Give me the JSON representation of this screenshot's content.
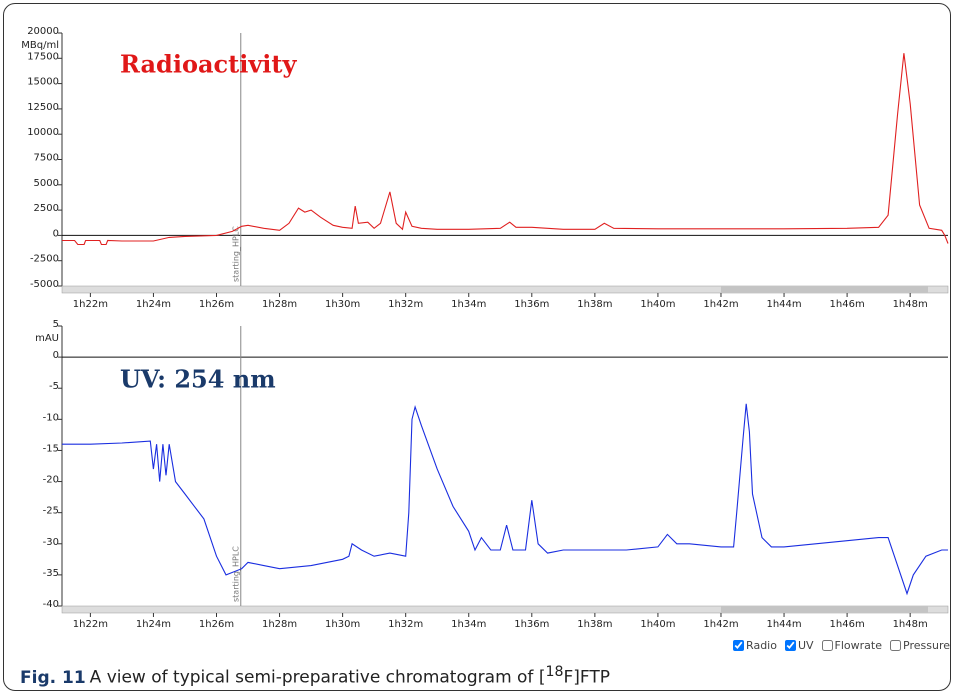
{
  "chart_data": [
    {
      "type": "line",
      "title": "Radioactivity",
      "y_unit": "MBq/ml",
      "color": "#e02020",
      "x": [
        81.1,
        81.5,
        81.6,
        81.8,
        81.85,
        82.3,
        82.35,
        82.5,
        82.55,
        83,
        84,
        84.5,
        85,
        86,
        86.5,
        86.8,
        87,
        87.5,
        88,
        88.3,
        88.6,
        88.8,
        89,
        89.3,
        89.7,
        90,
        90.3,
        90.4,
        90.5,
        90.8,
        91,
        91.2,
        91.5,
        91.7,
        91.9,
        92,
        92.2,
        92.5,
        93,
        94,
        95,
        95.3,
        95.5,
        96,
        97,
        98,
        98.3,
        98.6,
        100,
        104,
        106,
        107,
        107.3,
        107.6,
        107.8,
        108,
        108.3,
        108.6,
        109,
        109.1,
        109.2
      ],
      "values": [
        -500,
        -500,
        -900,
        -900,
        -500,
        -500,
        -900,
        -900,
        -500,
        -550,
        -550,
        -200,
        -100,
        0,
        400,
        900,
        1000,
        700,
        500,
        1200,
        2700,
        2300,
        2500,
        1800,
        1000,
        800,
        700,
        2900,
        1200,
        1300,
        700,
        1200,
        4300,
        1200,
        600,
        2300,
        900,
        700,
        600,
        600,
        700,
        1300,
        800,
        800,
        600,
        600,
        1200,
        700,
        650,
        650,
        700,
        800,
        2000,
        12000,
        18000,
        13000,
        3000,
        700,
        500,
        0,
        -800
      ],
      "xlim": [
        81.1,
        109.2
      ],
      "ylim": [
        -5000,
        20000
      ],
      "yticks": [
        -5000,
        -2500,
        0,
        2500,
        5000,
        7500,
        10000,
        12500,
        15000,
        17500,
        20000
      ],
      "xticks": [
        {
          "value": 82,
          "label": "1h22m"
        },
        {
          "value": 84,
          "label": "1h24m"
        },
        {
          "value": 86,
          "label": "1h26m"
        },
        {
          "value": 88,
          "label": "1h28m"
        },
        {
          "value": 90,
          "label": "1h30m"
        },
        {
          "value": 92,
          "label": "1h32m"
        },
        {
          "value": 94,
          "label": "1h34m"
        },
        {
          "value": 96,
          "label": "1h36m"
        },
        {
          "value": 98,
          "label": "1h38m"
        },
        {
          "value": 100,
          "label": "1h40m"
        },
        {
          "value": 102,
          "label": "1h42m"
        },
        {
          "value": 104,
          "label": "1h44m"
        },
        {
          "value": 106,
          "label": "1h46m"
        },
        {
          "value": 108,
          "label": "1h48m"
        }
      ],
      "marker": {
        "text": "starting_HPLC",
        "x": 86.77
      }
    },
    {
      "type": "line",
      "title": "UV: 254 nm",
      "y_unit": "mAU",
      "color": "#1a2ee0",
      "x": [
        81.1,
        82,
        83,
        83.9,
        84,
        84.1,
        84.2,
        84.3,
        84.4,
        84.5,
        84.7,
        85,
        85.3,
        85.6,
        86,
        86.3,
        86.8,
        87,
        87.5,
        88,
        89,
        90,
        90.2,
        90.3,
        90.6,
        91,
        91.5,
        92,
        92.1,
        92.2,
        92.3,
        92.5,
        93,
        93.5,
        94,
        94.2,
        94.4,
        94.7,
        95,
        95.2,
        95.4,
        95.8,
        96,
        96.2,
        96.5,
        97,
        98,
        99,
        100,
        100.3,
        100.6,
        101,
        102,
        102.4,
        102.5,
        102.7,
        102.8,
        102.9,
        103,
        103.3,
        103.6,
        104,
        105,
        106,
        107,
        107.3,
        107.5,
        107.9,
        108.1,
        108.5,
        109,
        109.2
      ],
      "values": [
        -14,
        -14,
        -13.8,
        -13.5,
        -18,
        -14,
        -20,
        -14,
        -19,
        -14,
        -20,
        -22,
        -24,
        -26,
        -32,
        -35,
        -34,
        -33,
        -33.5,
        -34,
        -33.5,
        -32.5,
        -32,
        -30,
        -31,
        -32,
        -31.5,
        -32,
        -25,
        -10,
        -8,
        -11,
        -18,
        -24,
        -28,
        -31,
        -29,
        -31,
        -31,
        -27,
        -31,
        -31,
        -23,
        -30,
        -31.5,
        -31,
        -31,
        -31,
        -30.5,
        -28.5,
        -30,
        -30,
        -30.5,
        -30.5,
        -25,
        -13,
        -7.5,
        -12,
        -22,
        -29,
        -30.5,
        -30.5,
        -30,
        -29.5,
        -29,
        -29,
        -32,
        -38,
        -35,
        -32,
        -31,
        -31
      ],
      "xlim": [
        81.1,
        109.2
      ],
      "ylim": [
        -40,
        5
      ],
      "yticks": [
        -40,
        -35,
        -30,
        -25,
        -20,
        -15,
        -10,
        -5,
        0,
        5
      ],
      "xticks": [
        {
          "value": 82,
          "label": "1h22m"
        },
        {
          "value": 84,
          "label": "1h24m"
        },
        {
          "value": 86,
          "label": "1h26m"
        },
        {
          "value": 88,
          "label": "1h28m"
        },
        {
          "value": 90,
          "label": "1h30m"
        },
        {
          "value": 92,
          "label": "1h32m"
        },
        {
          "value": 94,
          "label": "1h34m"
        },
        {
          "value": 96,
          "label": "1h36m"
        },
        {
          "value": 98,
          "label": "1h38m"
        },
        {
          "value": 100,
          "label": "1h40m"
        },
        {
          "value": 102,
          "label": "1h42m"
        },
        {
          "value": 104,
          "label": "1h44m"
        },
        {
          "value": 106,
          "label": "1h46m"
        },
        {
          "value": 108,
          "label": "1h48m"
        }
      ],
      "marker": {
        "text": "starting_HPLC",
        "x": 86.77
      }
    }
  ],
  "checkboxes": [
    {
      "label": "Radio",
      "checked": true
    },
    {
      "label": "UV",
      "checked": true
    },
    {
      "label": "Flowrate",
      "checked": false
    },
    {
      "label": "Pressure",
      "checked": false
    }
  ],
  "caption": {
    "label": "Fig. 11",
    "text": "A view of typical semi-preparative chromatogram of [",
    "sup": "18",
    "tail": "F]FTP"
  }
}
